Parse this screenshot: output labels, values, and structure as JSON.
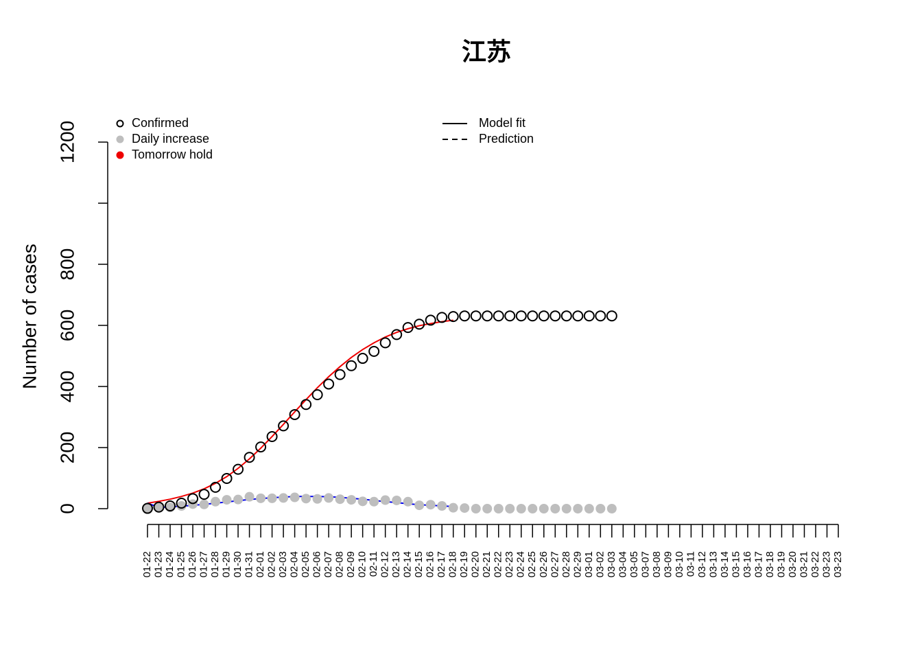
{
  "chart_data": {
    "type": "scatter",
    "title": "江苏",
    "y_label": "Number of cases",
    "categories": [
      "01-22",
      "01-23",
      "01-24",
      "01-25",
      "01-26",
      "01-27",
      "01-28",
      "01-29",
      "01-30",
      "01-31",
      "02-01",
      "02-02",
      "02-03",
      "02-04",
      "02-05",
      "02-06",
      "02-07",
      "02-08",
      "02-09",
      "02-10",
      "02-11",
      "02-12",
      "02-13",
      "02-14",
      "02-15",
      "02-16",
      "02-17",
      "02-18",
      "02-19",
      "02-20",
      "02-21",
      "02-22",
      "02-23",
      "02-24",
      "02-25",
      "02-26",
      "02-27",
      "02-28",
      "02-29",
      "03-01",
      "03-02",
      "03-03",
      "03-04",
      "03-05",
      "03-07",
      "03-08",
      "03-09",
      "03-10",
      "03-11",
      "03-12",
      "03-13",
      "03-14",
      "03-15",
      "03-16",
      "03-17",
      "03-18",
      "03-19",
      "03-20",
      "03-21",
      "03-22",
      "03-23",
      "03-23"
    ],
    "ylim": [
      0,
      1200
    ],
    "yticks": [
      0,
      200,
      400,
      600,
      800,
      {
        "value": 1000,
        "label": null
      },
      1200
    ],
    "points": [
      {
        "marker": "open",
        "color": "#000000",
        "values": [
          1,
          5,
          9,
          18,
          33,
          47,
          70,
          99,
          129,
          168,
          202,
          236,
          271,
          308,
          341,
          373,
          408,
          439,
          468,
          492,
          515,
          543,
          570,
          593,
          604,
          617,
          626,
          629,
          631,
          631,
          631,
          631,
          631,
          631,
          631,
          631,
          631,
          631,
          631,
          631,
          631,
          631
        ]
      },
      {
        "marker": "filled",
        "color": "#bebebe",
        "values": [
          1,
          4,
          4,
          9,
          15,
          14,
          23,
          29,
          30,
          39,
          34,
          34,
          35,
          37,
          33,
          32,
          35,
          31,
          29,
          24,
          23,
          28,
          27,
          23,
          11,
          13,
          9,
          3,
          2,
          0,
          0,
          0,
          0,
          0,
          0,
          0,
          0,
          0,
          0,
          0,
          0,
          0
        ]
      }
    ],
    "lines": [
      {
        "color": "#ee0000",
        "values": [
          18,
          24,
          31,
          40,
          51,
          65,
          83,
          105,
          132,
          163,
          198,
          236,
          276,
          317,
          357,
          396,
          432,
          465,
          495,
          521,
          543,
          562,
          577,
          589,
          599,
          606,
          612,
          617
        ]
      },
      {
        "color": "#0000ee",
        "values": [
          18,
          4,
          6,
          8,
          11,
          14,
          18,
          22,
          26,
          30,
          33,
          36,
          38,
          40,
          40,
          40,
          39,
          37,
          34,
          31,
          27,
          23,
          20,
          16,
          13,
          11,
          9,
          7
        ]
      }
    ],
    "legend": [
      {
        "label": "Confirmed",
        "kind": "open",
        "color": "#000000"
      },
      {
        "label": "Daily increase",
        "kind": "filled",
        "color": "#bebebe"
      },
      {
        "label": "Tomorrow hold",
        "kind": "filled",
        "color": "#ee0000"
      },
      {
        "label": "Model fit",
        "kind": "solid",
        "color": "#000000"
      },
      {
        "label": "Prediction",
        "kind": "dashed",
        "color": "#000000"
      }
    ]
  }
}
